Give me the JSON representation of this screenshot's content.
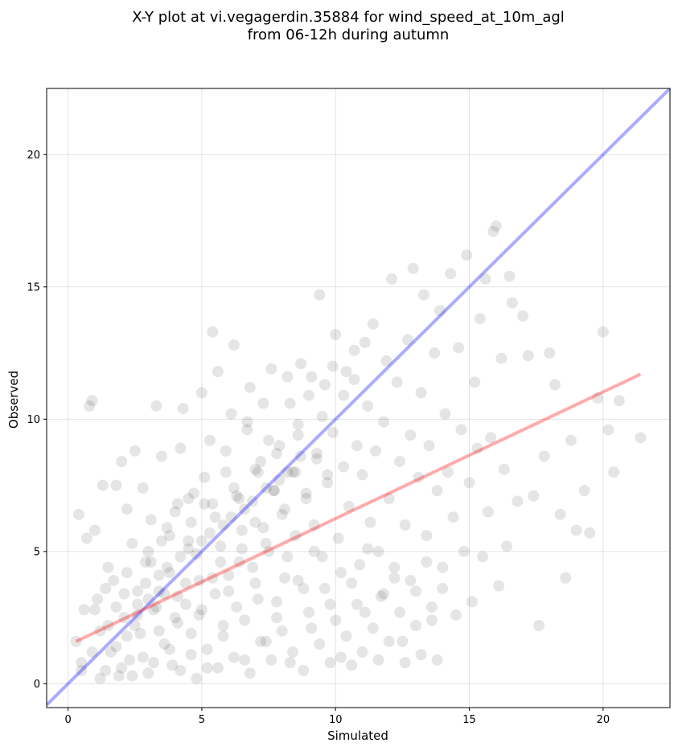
{
  "chart_data": {
    "type": "scatter",
    "title_lines": [
      "X-Y plot at vi.vegagerdin.35884 for wind_speed_at_10m_agl",
      "from 06-12h during autumn"
    ],
    "xlabel": "Simulated",
    "ylabel": "Observed",
    "xlim": [
      -0.8,
      22.5
    ],
    "ylim": [
      -0.9,
      22.5
    ],
    "xticks": [
      0,
      5,
      10,
      15,
      20
    ],
    "yticks": [
      0,
      5,
      10,
      15,
      20
    ],
    "grid": true,
    "point_color": "#000000",
    "point_opacity": 0.1,
    "series": [
      {
        "values_description_omitted": false,
        "points": [
          [
            0.3,
            1.6
          ],
          [
            0.4,
            6.4
          ],
          [
            0.5,
            0.8
          ],
          [
            0.6,
            2.8
          ],
          [
            0.7,
            5.5
          ],
          [
            0.8,
            10.5
          ],
          [
            0.9,
            10.7
          ],
          [
            1.0,
            5.8
          ],
          [
            1.1,
            3.2
          ],
          [
            1.2,
            2.0
          ],
          [
            1.3,
            7.5
          ],
          [
            1.4,
            0.5
          ],
          [
            1.5,
            4.4
          ],
          [
            1.6,
            1.2
          ],
          [
            1.7,
            3.9
          ],
          [
            1.8,
            7.5
          ],
          [
            1.9,
            0.3
          ],
          [
            2.0,
            8.4
          ],
          [
            2.1,
            2.5
          ],
          [
            2.2,
            6.6
          ],
          [
            2.3,
            0.9
          ],
          [
            2.4,
            5.3
          ],
          [
            2.5,
            8.8
          ],
          [
            2.6,
            3.0
          ],
          [
            2.7,
            1.9
          ],
          [
            2.8,
            7.4
          ],
          [
            2.9,
            4.6
          ],
          [
            3.0,
            0.4
          ],
          [
            3.1,
            6.2
          ],
          [
            3.2,
            2.8
          ],
          [
            3.3,
            10.5
          ],
          [
            3.4,
            3.5
          ],
          [
            3.5,
            8.6
          ],
          [
            3.6,
            1.5
          ],
          [
            3.7,
            5.9
          ],
          [
            3.8,
            4.2
          ],
          [
            3.9,
            0.7
          ],
          [
            4.0,
            6.5
          ],
          [
            4.1,
            2.3
          ],
          [
            4.2,
            8.9
          ],
          [
            4.3,
            10.4
          ],
          [
            4.4,
            3.8
          ],
          [
            4.5,
            5.4
          ],
          [
            4.6,
            1.1
          ],
          [
            4.7,
            7.2
          ],
          [
            4.8,
            4.9
          ],
          [
            4.9,
            2.6
          ],
          [
            5.0,
            11.0
          ],
          [
            5.1,
            6.8
          ],
          [
            5.2,
            0.6
          ],
          [
            5.3,
            9.2
          ],
          [
            5.4,
            13.3
          ],
          [
            5.5,
            3.4
          ],
          [
            5.6,
            11.8
          ],
          [
            5.7,
            5.2
          ],
          [
            5.8,
            1.8
          ],
          [
            5.9,
            8.0
          ],
          [
            6.0,
            4.1
          ],
          [
            6.1,
            10.2
          ],
          [
            6.2,
            12.8
          ],
          [
            6.3,
            2.9
          ],
          [
            6.4,
            7.0
          ],
          [
            6.5,
            5.8
          ],
          [
            6.6,
            0.9
          ],
          [
            6.7,
            9.6
          ],
          [
            6.8,
            11.2
          ],
          [
            6.9,
            4.4
          ],
          [
            7.0,
            6.1
          ],
          [
            7.1,
            3.2
          ],
          [
            7.2,
            8.4
          ],
          [
            7.3,
            10.6
          ],
          [
            7.4,
            1.6
          ],
          [
            7.5,
            5.0
          ],
          [
            7.6,
            11.9
          ],
          [
            7.7,
            7.3
          ],
          [
            7.8,
            2.5
          ],
          [
            7.9,
            9.0
          ],
          [
            8.0,
            6.4
          ],
          [
            8.1,
            4.0
          ],
          [
            8.2,
            11.6
          ],
          [
            8.3,
            0.8
          ],
          [
            8.4,
            8.0
          ],
          [
            8.5,
            5.6
          ],
          [
            8.6,
            9.8
          ],
          [
            8.7,
            12.1
          ],
          [
            8.8,
            3.6
          ],
          [
            8.9,
            7.0
          ],
          [
            9.0,
            10.9
          ],
          [
            9.1,
            2.1
          ],
          [
            9.2,
            6.0
          ],
          [
            9.3,
            8.7
          ],
          [
            9.4,
            14.7
          ],
          [
            9.5,
            4.8
          ],
          [
            9.6,
            11.3
          ],
          [
            9.7,
            7.6
          ],
          [
            9.8,
            3.0
          ],
          [
            9.9,
            9.5
          ],
          [
            10.0,
            13.2
          ],
          [
            10.1,
            5.5
          ],
          [
            10.2,
            1.0
          ],
          [
            10.3,
            8.2
          ],
          [
            10.4,
            11.8
          ],
          [
            10.5,
            6.7
          ],
          [
            10.6,
            3.8
          ],
          [
            10.7,
            12.6
          ],
          [
            10.8,
            9.0
          ],
          [
            10.9,
            4.5
          ],
          [
            11.0,
            7.9
          ],
          [
            11.1,
            2.7
          ],
          [
            11.2,
            10.5
          ],
          [
            11.3,
            6.1
          ],
          [
            11.4,
            13.6
          ],
          [
            11.5,
            8.8
          ],
          [
            11.6,
            5.0
          ],
          [
            11.7,
            3.3
          ],
          [
            11.8,
            9.9
          ],
          [
            11.9,
            12.2
          ],
          [
            12.0,
            7.0
          ],
          [
            12.1,
            15.3
          ],
          [
            12.2,
            4.0
          ],
          [
            12.3,
            11.4
          ],
          [
            12.4,
            8.4
          ],
          [
            12.5,
            1.6
          ],
          [
            12.6,
            6.0
          ],
          [
            12.7,
            13.0
          ],
          [
            12.8,
            9.4
          ],
          [
            12.9,
            15.7
          ],
          [
            13.0,
            3.5
          ],
          [
            13.1,
            7.8
          ],
          [
            13.2,
            11.0
          ],
          [
            13.3,
            14.7
          ],
          [
            13.4,
            5.6
          ],
          [
            13.5,
            9.0
          ],
          [
            13.6,
            2.9
          ],
          [
            13.7,
            12.5
          ],
          [
            13.8,
            7.3
          ],
          [
            13.9,
            14.1
          ],
          [
            14.0,
            4.4
          ],
          [
            14.1,
            10.2
          ],
          [
            14.2,
            8.0
          ],
          [
            14.3,
            15.5
          ],
          [
            14.4,
            6.3
          ],
          [
            14.5,
            2.6
          ],
          [
            14.6,
            12.7
          ],
          [
            14.7,
            9.6
          ],
          [
            14.8,
            5.0
          ],
          [
            14.9,
            16.2
          ],
          [
            15.0,
            7.6
          ],
          [
            15.1,
            3.1
          ],
          [
            15.2,
            11.4
          ],
          [
            15.3,
            8.9
          ],
          [
            15.4,
            13.8
          ],
          [
            15.5,
            4.8
          ],
          [
            15.6,
            15.3
          ],
          [
            15.7,
            6.5
          ],
          [
            15.8,
            9.3
          ],
          [
            15.9,
            17.1
          ],
          [
            16.0,
            17.3
          ],
          [
            16.1,
            3.7
          ],
          [
            16.2,
            12.3
          ],
          [
            16.3,
            8.1
          ],
          [
            16.4,
            5.2
          ],
          [
            16.5,
            15.4
          ],
          [
            16.6,
            14.4
          ],
          [
            16.8,
            6.9
          ],
          [
            17.0,
            13.9
          ],
          [
            17.2,
            12.4
          ],
          [
            17.4,
            7.1
          ],
          [
            17.6,
            2.2
          ],
          [
            17.8,
            8.6
          ],
          [
            18.0,
            12.5
          ],
          [
            18.2,
            11.3
          ],
          [
            18.4,
            6.4
          ],
          [
            18.6,
            4.0
          ],
          [
            18.8,
            9.2
          ],
          [
            19.0,
            5.8
          ],
          [
            19.3,
            7.3
          ],
          [
            19.5,
            5.7
          ],
          [
            19.8,
            10.8
          ],
          [
            20.0,
            13.3
          ],
          [
            20.2,
            9.6
          ],
          [
            20.4,
            8.0
          ],
          [
            20.6,
            10.7
          ],
          [
            21.4,
            9.3
          ],
          [
            0.5,
            0.5
          ],
          [
            0.9,
            1.2
          ],
          [
            1.2,
            0.2
          ],
          [
            1.5,
            2.2
          ],
          [
            1.8,
            1.4
          ],
          [
            2.0,
            0.6
          ],
          [
            2.2,
            1.8
          ],
          [
            2.4,
            0.3
          ],
          [
            2.6,
            2.6
          ],
          [
            2.8,
            1.0
          ],
          [
            3.0,
            3.2
          ],
          [
            3.2,
            0.8
          ],
          [
            3.4,
            2.0
          ],
          [
            3.6,
            3.4
          ],
          [
            3.8,
            1.3
          ],
          [
            4.0,
            2.5
          ],
          [
            4.2,
            0.5
          ],
          [
            4.4,
            3.0
          ],
          [
            4.6,
            1.9
          ],
          [
            4.8,
            0.2
          ],
          [
            5.0,
            2.8
          ],
          [
            5.2,
            1.3
          ],
          [
            5.4,
            4.0
          ],
          [
            5.6,
            0.6
          ],
          [
            5.8,
            2.2
          ],
          [
            6.0,
            3.5
          ],
          [
            6.2,
            1.0
          ],
          [
            6.4,
            4.6
          ],
          [
            6.6,
            2.4
          ],
          [
            6.8,
            0.4
          ],
          [
            7.0,
            3.8
          ],
          [
            7.2,
            1.6
          ],
          [
            7.4,
            5.3
          ],
          [
            7.6,
            0.9
          ],
          [
            7.8,
            3.1
          ],
          [
            8.0,
            2.0
          ],
          [
            8.2,
            4.8
          ],
          [
            8.4,
            1.2
          ],
          [
            8.6,
            3.9
          ],
          [
            8.8,
            0.5
          ],
          [
            9.0,
            2.7
          ],
          [
            9.2,
            5.0
          ],
          [
            9.4,
            1.5
          ],
          [
            9.6,
            3.6
          ],
          [
            9.8,
            0.8
          ],
          [
            10.0,
            2.4
          ],
          [
            10.2,
            4.2
          ],
          [
            10.4,
            1.8
          ],
          [
            10.6,
            0.7
          ],
          [
            10.8,
            3.0
          ],
          [
            11.0,
            1.2
          ],
          [
            11.2,
            5.1
          ],
          [
            11.4,
            2.1
          ],
          [
            11.6,
            0.9
          ],
          [
            11.8,
            3.4
          ],
          [
            12.0,
            1.6
          ],
          [
            12.2,
            4.4
          ],
          [
            12.4,
            2.7
          ],
          [
            12.6,
            0.8
          ],
          [
            12.8,
            3.9
          ],
          [
            13.0,
            2.2
          ],
          [
            13.2,
            1.1
          ],
          [
            13.4,
            4.6
          ],
          [
            13.6,
            2.4
          ],
          [
            13.8,
            0.9
          ],
          [
            14.0,
            3.6
          ],
          [
            3.1,
            4.6
          ],
          [
            3.5,
            5.4
          ],
          [
            4.1,
            6.8
          ],
          [
            4.5,
            7.0
          ],
          [
            5.1,
            7.8
          ],
          [
            5.5,
            6.3
          ],
          [
            5.9,
            8.8
          ],
          [
            6.3,
            7.1
          ],
          [
            6.7,
            9.9
          ],
          [
            7.1,
            8.0
          ],
          [
            7.5,
            9.2
          ],
          [
            7.9,
            7.7
          ],
          [
            8.3,
            10.6
          ],
          [
            8.7,
            8.6
          ],
          [
            9.1,
            11.6
          ],
          [
            9.5,
            10.1
          ],
          [
            9.9,
            12.0
          ],
          [
            10.3,
            10.9
          ],
          [
            10.7,
            11.5
          ],
          [
            11.1,
            12.9
          ],
          [
            2.1,
            3.4
          ],
          [
            2.5,
            2.2
          ],
          [
            2.9,
            3.8
          ],
          [
            3.3,
            2.9
          ],
          [
            3.7,
            4.4
          ],
          [
            4.1,
            3.3
          ],
          [
            4.5,
            5.1
          ],
          [
            4.9,
            3.9
          ],
          [
            5.3,
            5.7
          ],
          [
            5.7,
            4.6
          ],
          [
            6.1,
            6.3
          ],
          [
            6.5,
            5.1
          ],
          [
            6.9,
            6.9
          ],
          [
            7.3,
            5.9
          ],
          [
            7.7,
            7.3
          ],
          [
            8.1,
            6.6
          ],
          [
            8.5,
            8.0
          ],
          [
            8.9,
            7.2
          ],
          [
            9.3,
            8.5
          ],
          [
            9.7,
            7.9
          ],
          [
            1.0,
            2.8
          ],
          [
            1.4,
            3.6
          ],
          [
            1.8,
            2.9
          ],
          [
            2.2,
            4.2
          ],
          [
            2.6,
            3.5
          ],
          [
            3.0,
            5.0
          ],
          [
            3.4,
            4.1
          ],
          [
            3.8,
            5.6
          ],
          [
            4.2,
            4.8
          ],
          [
            4.6,
            6.1
          ],
          [
            5.0,
            5.4
          ],
          [
            5.4,
            6.8
          ],
          [
            5.8,
            6.0
          ],
          [
            6.2,
            7.4
          ],
          [
            6.6,
            6.6
          ],
          [
            7.0,
            8.1
          ],
          [
            7.4,
            7.4
          ],
          [
            7.8,
            8.7
          ],
          [
            8.2,
            8.0
          ],
          [
            8.6,
            9.4
          ]
        ]
      }
    ],
    "lines": [
      {
        "name": "identity",
        "color": "#0000ff",
        "opacity": 0.33,
        "from": [
          -0.8,
          -0.8
        ],
        "to": [
          22.5,
          22.5
        ]
      },
      {
        "name": "regression",
        "color": "#ff0000",
        "opacity": 0.33,
        "from": [
          0.3,
          1.6
        ],
        "to": [
          21.4,
          11.7
        ]
      }
    ]
  }
}
